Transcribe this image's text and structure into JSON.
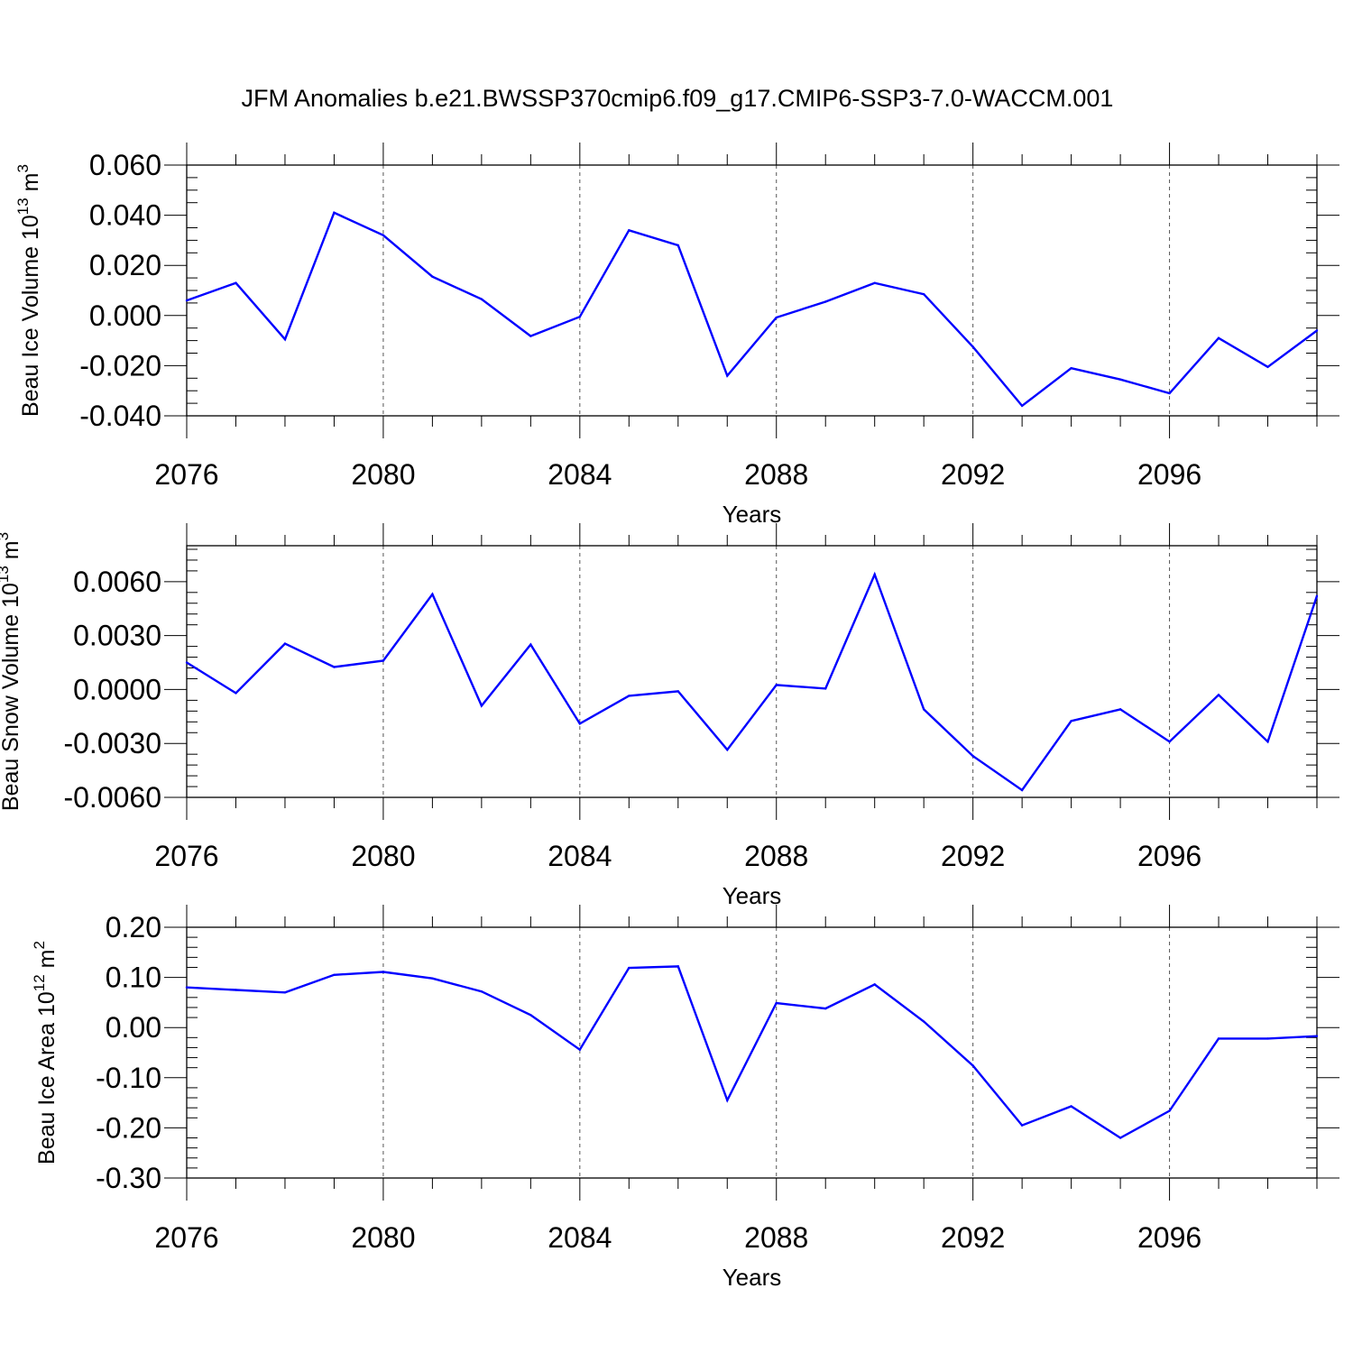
{
  "figure": {
    "title": "JFM Anomalies b.e21.BWSSP370cmip6.f09_g17.CMIP6-SSP3-7.0-WACCM.001",
    "line_color": "#0000ff"
  },
  "chart_data": [
    {
      "type": "line",
      "xlabel": "Years",
      "ylabel": "Beau Ice Volume 10",
      "ylabel_exp": "13",
      "ylabel_unit": " m",
      "ylabel_unit_exp": "3",
      "xlim": [
        2076,
        2099
      ],
      "ylim": [
        -0.04,
        0.06
      ],
      "x_ticks": [
        2076,
        2080,
        2084,
        2088,
        2092,
        2096
      ],
      "x_tick_labels": [
        "2076",
        "2080",
        "2084",
        "2088",
        "2092",
        "2096"
      ],
      "y_ticks": [
        -0.04,
        -0.02,
        0.0,
        0.02,
        0.04,
        0.06
      ],
      "y_tick_labels": [
        "-0.040",
        "-0.020",
        "0.000",
        "0.020",
        "0.040",
        "0.060"
      ],
      "y_minor_step": 0.005,
      "grid": "vertical dashed at major x ticks",
      "x": [
        2076,
        2077,
        2078,
        2079,
        2080,
        2081,
        2082,
        2083,
        2084,
        2085,
        2086,
        2087,
        2088,
        2089,
        2090,
        2091,
        2092,
        2093,
        2094,
        2095,
        2096,
        2097,
        2098,
        2099
      ],
      "series": [
        {
          "values": [
            0.006,
            0.013,
            -0.0095,
            0.041,
            0.032,
            0.0155,
            0.0065,
            -0.0082,
            -0.0005,
            0.034,
            0.028,
            -0.024,
            -0.0008,
            0.0055,
            0.013,
            0.0085,
            -0.0125,
            -0.036,
            -0.021,
            -0.0255,
            -0.031,
            -0.009,
            -0.0205,
            -0.006
          ]
        }
      ]
    },
    {
      "type": "line",
      "xlabel": "Years",
      "ylabel": "Beau Snow Volume 10",
      "ylabel_exp": "13",
      "ylabel_unit": " m",
      "ylabel_unit_exp": "3",
      "xlim": [
        2076,
        2099
      ],
      "ylim": [
        -0.006,
        0.008
      ],
      "x_ticks": [
        2076,
        2080,
        2084,
        2088,
        2092,
        2096
      ],
      "x_tick_labels": [
        "2076",
        "2080",
        "2084",
        "2088",
        "2092",
        "2096"
      ],
      "y_ticks": [
        -0.006,
        -0.003,
        0.0,
        0.003,
        0.006
      ],
      "y_tick_labels": [
        "-0.0060",
        "-0.0030",
        "0.0000",
        "0.0030",
        "0.0060"
      ],
      "y_minor_step": 0.0006,
      "grid": "vertical dashed at major x ticks",
      "x": [
        2076,
        2077,
        2078,
        2079,
        2080,
        2081,
        2082,
        2083,
        2084,
        2085,
        2086,
        2087,
        2088,
        2089,
        2090,
        2091,
        2092,
        2093,
        2094,
        2095,
        2096,
        2097,
        2098,
        2099
      ],
      "series": [
        {
          "values": [
            0.0015,
            -0.0002,
            0.00255,
            0.00125,
            0.0016,
            0.0053,
            -0.0009,
            0.0025,
            -0.0019,
            -0.00035,
            -0.0001,
            -0.00335,
            0.00025,
            5e-05,
            0.0064,
            -0.0011,
            -0.0037,
            -0.0056,
            -0.00175,
            -0.0011,
            -0.0029,
            -0.0003,
            -0.0029,
            0.0052
          ]
        }
      ]
    },
    {
      "type": "line",
      "xlabel": "Years",
      "ylabel": "Beau Ice Area 10",
      "ylabel_exp": "12",
      "ylabel_unit": " m",
      "ylabel_unit_exp": "2",
      "xlim": [
        2076,
        2099
      ],
      "ylim": [
        -0.3,
        0.2
      ],
      "x_ticks": [
        2076,
        2080,
        2084,
        2088,
        2092,
        2096
      ],
      "x_tick_labels": [
        "2076",
        "2080",
        "2084",
        "2088",
        "2092",
        "2096"
      ],
      "y_ticks": [
        -0.3,
        -0.2,
        -0.1,
        0.0,
        0.1,
        0.2
      ],
      "y_tick_labels": [
        "-0.30",
        "-0.20",
        "-0.10",
        "0.00",
        "0.10",
        "0.20"
      ],
      "y_minor_step": 0.02,
      "grid": "vertical dashed at major x ticks",
      "x": [
        2076,
        2077,
        2078,
        2079,
        2080,
        2081,
        2082,
        2083,
        2084,
        2085,
        2086,
        2087,
        2088,
        2089,
        2090,
        2091,
        2092,
        2093,
        2094,
        2095,
        2096,
        2097,
        2098,
        2099
      ],
      "series": [
        {
          "values": [
            0.08,
            0.075,
            0.07,
            0.105,
            0.111,
            0.098,
            0.072,
            0.025,
            -0.044,
            0.119,
            0.122,
            -0.145,
            0.049,
            0.038,
            0.086,
            0.012,
            -0.076,
            -0.195,
            -0.157,
            -0.22,
            -0.166,
            -0.022,
            -0.022,
            -0.017
          ]
        }
      ]
    }
  ]
}
